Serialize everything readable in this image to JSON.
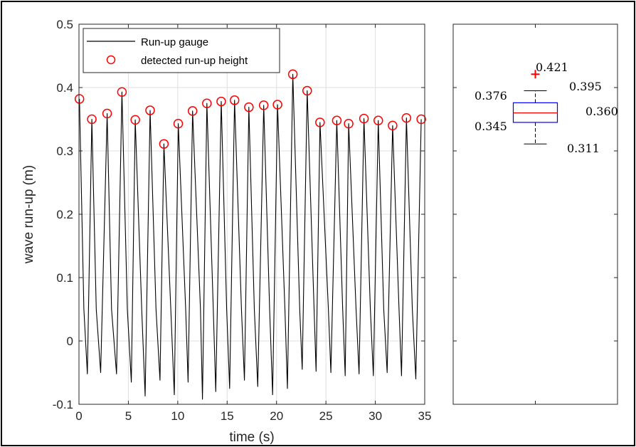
{
  "chart_data": [
    {
      "type": "line",
      "xlabel": "time (s)",
      "ylabel": "wave run-up (m)",
      "xlim": [
        0,
        35
      ],
      "ylim": [
        -0.1,
        0.5
      ],
      "xticks": [
        0,
        5,
        10,
        15,
        20,
        25,
        30,
        35
      ],
      "yticks": [
        -0.1,
        0,
        0.1,
        0.2,
        0.3,
        0.4,
        0.5
      ],
      "grid": true,
      "legend_position": "top-left",
      "series": [
        {
          "name": "Run-up gauge",
          "kind": "line",
          "color": "#000000",
          "x": [
            0.05,
            0.5,
            0.85,
            1.3,
            1.75,
            2.2,
            2.85,
            3.3,
            3.8,
            4.35,
            4.9,
            5.3,
            5.7,
            6.35,
            6.7,
            7.2,
            7.8,
            8.2,
            8.6,
            9.3,
            9.65,
            10.05,
            10.8,
            11.05,
            11.5,
            12.3,
            12.5,
            12.95,
            13.6,
            13.85,
            14.4,
            14.95,
            15.25,
            15.75,
            16.45,
            16.75,
            17.2,
            17.75,
            18.1,
            18.7,
            19.3,
            19.6,
            20.1,
            20.85,
            21.1,
            21.65,
            22.35,
            22.6,
            23.1,
            23.8,
            24.0,
            24.4,
            25.25,
            25.5,
            26.1,
            26.7,
            26.95,
            27.3,
            28.05,
            28.35,
            28.85,
            29.5,
            29.8,
            30.3,
            30.85,
            31.2,
            31.75,
            32.4,
            32.65,
            33.15,
            33.75,
            34.1,
            34.65
          ],
          "y": [
            0.382,
            0.05,
            -0.052,
            0.35,
            0.05,
            -0.05,
            0.359,
            0.05,
            -0.052,
            0.393,
            0.05,
            -0.065,
            0.349,
            0.05,
            -0.087,
            0.364,
            0.05,
            -0.062,
            0.311,
            0.05,
            -0.085,
            0.343,
            0.05,
            -0.065,
            0.363,
            0.05,
            -0.092,
            0.375,
            0.05,
            -0.08,
            0.378,
            0.05,
            -0.075,
            0.38,
            0.05,
            -0.062,
            0.369,
            0.05,
            -0.072,
            0.372,
            0.05,
            -0.085,
            0.373,
            0.05,
            -0.075,
            0.421,
            0.05,
            -0.045,
            0.395,
            0.05,
            -0.048,
            0.345,
            0.05,
            -0.05,
            0.348,
            0.05,
            -0.055,
            0.343,
            0.05,
            -0.052,
            0.351,
            0.05,
            -0.055,
            0.348,
            0.05,
            -0.05,
            0.34,
            0.05,
            -0.055,
            0.352,
            0.05,
            -0.06,
            0.35
          ]
        },
        {
          "name": "detected run-up height",
          "kind": "scatter",
          "color": "#ff0000",
          "x": [
            0.05,
            1.3,
            2.85,
            4.35,
            5.7,
            7.2,
            8.6,
            10.05,
            11.5,
            12.95,
            14.4,
            15.75,
            17.2,
            18.7,
            20.1,
            21.65,
            23.1,
            24.4,
            26.1,
            27.3,
            28.85,
            30.3,
            31.75,
            33.15,
            34.65
          ],
          "y": [
            0.382,
            0.35,
            0.359,
            0.393,
            0.349,
            0.364,
            0.311,
            0.343,
            0.363,
            0.375,
            0.378,
            0.38,
            0.369,
            0.372,
            0.373,
            0.421,
            0.395,
            0.345,
            0.348,
            0.343,
            0.351,
            0.348,
            0.34,
            0.352,
            0.35
          ]
        }
      ]
    },
    {
      "type": "boxplot",
      "ylim": [
        -0.1,
        0.5
      ],
      "median": 0.36,
      "q1": 0.345,
      "q3": 0.376,
      "whisker_low": 0.311,
      "whisker_high": 0.395,
      "outliers": [
        0.421
      ],
      "box_color": "#0000ff",
      "median_color": "#ff0000",
      "outlier_color": "#ff0000",
      "labels": {
        "outlier": "0.421",
        "whisker_high": "0.395",
        "q3": "0.376",
        "median": "0.360",
        "q1": "0.345",
        "whisker_low": "0.311"
      }
    }
  ]
}
